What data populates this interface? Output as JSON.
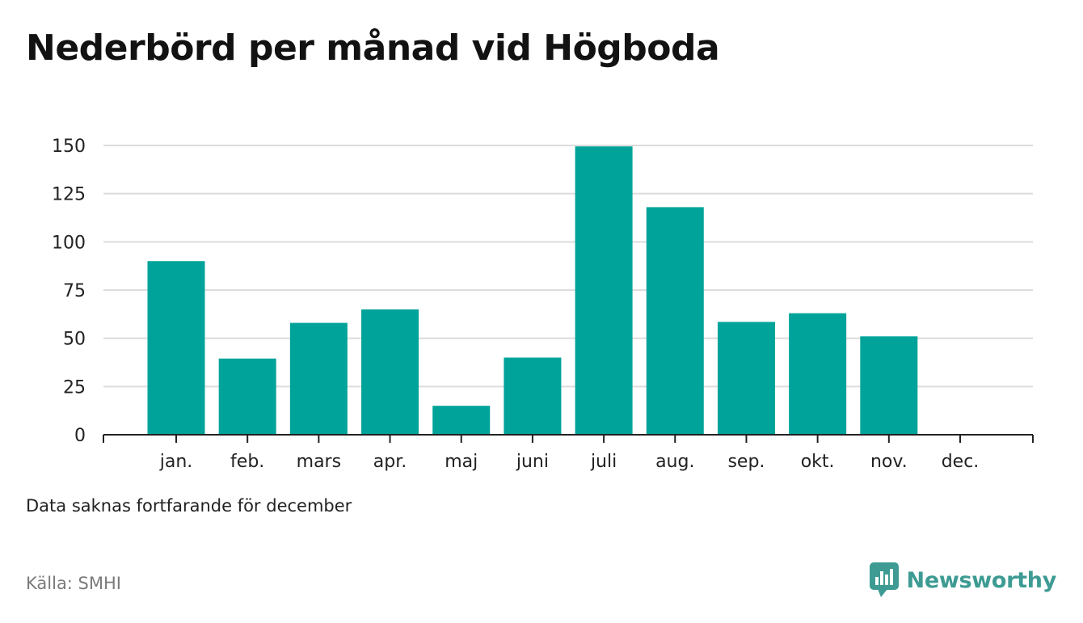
{
  "title": "Nederbörd per månad vid Högboda",
  "note": "Data saknas fortfarande för december",
  "source": "Källa: SMHI",
  "brand": {
    "name": "Newsworthy",
    "icon": "newsworthy-logo-icon",
    "color": "#3d9b93"
  },
  "colors": {
    "bar": "#00a39a",
    "grid": "#dcdcdc",
    "axis": "#222222"
  },
  "chart_data": {
    "type": "bar",
    "title": "Nederbörd per månad vid Högboda",
    "xlabel": "",
    "ylabel": "",
    "categories": [
      "jan.",
      "feb.",
      "mars",
      "apr.",
      "maj",
      "juni",
      "juli",
      "aug.",
      "sep.",
      "okt.",
      "nov.",
      "dec."
    ],
    "values": [
      90,
      39.5,
      58,
      65,
      15,
      40,
      149.5,
      118,
      58.5,
      63,
      51,
      null
    ],
    "ylim": [
      0,
      150
    ],
    "yticks": [
      0,
      25,
      50,
      75,
      100,
      125,
      150
    ],
    "grid": true,
    "legend": "none"
  }
}
